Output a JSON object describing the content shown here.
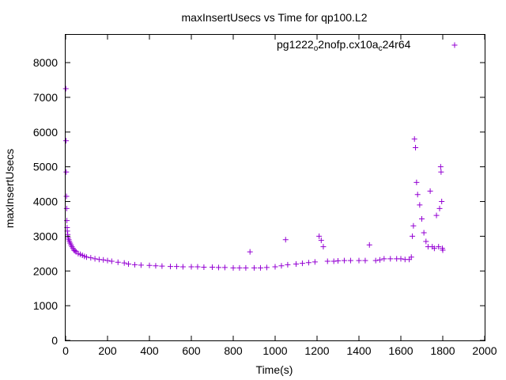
{
  "chart_data": {
    "type": "scatter",
    "title": "maxInsertUsecs vs Time for qp100.L2",
    "xlabel": "Time(s)",
    "ylabel": "maxInsertUsecs",
    "xlim": [
      0,
      2000
    ],
    "ylim": [
      0,
      8800
    ],
    "x_ticks": [
      "0",
      "200",
      "400",
      "600",
      "800",
      "1000",
      "1200",
      "1400",
      "1600",
      "1800",
      "2000"
    ],
    "y_ticks": [
      "0",
      "1000",
      "2000",
      "3000",
      "4000",
      "5000",
      "6000",
      "7000",
      "8000"
    ],
    "grid": false,
    "legend_position": "top-right",
    "series": [
      {
        "name": "pg1222_o2nofp.cx10a_c24r64",
        "legend_parts": [
          {
            "text": "pg1222",
            "sub": false
          },
          {
            "text": "o",
            "sub": true
          },
          {
            "text": "2nofp.cx10a",
            "sub": false
          },
          {
            "text": "c",
            "sub": true
          },
          {
            "text": "24r64",
            "sub": false
          }
        ],
        "color": "#9400d3",
        "marker": "plus",
        "points": [
          [
            1,
            7250
          ],
          [
            2,
            5750
          ],
          [
            3,
            4850
          ],
          [
            4,
            4150
          ],
          [
            5,
            3800
          ],
          [
            6,
            3450
          ],
          [
            7,
            3250
          ],
          [
            8,
            3150
          ],
          [
            10,
            3050
          ],
          [
            12,
            2950
          ],
          [
            15,
            2900
          ],
          [
            18,
            2850
          ],
          [
            22,
            2800
          ],
          [
            26,
            2750
          ],
          [
            30,
            2700
          ],
          [
            35,
            2650
          ],
          [
            40,
            2600
          ],
          [
            45,
            2580
          ],
          [
            50,
            2550
          ],
          [
            60,
            2500
          ],
          [
            70,
            2480
          ],
          [
            80,
            2450
          ],
          [
            90,
            2420
          ],
          [
            100,
            2400
          ],
          [
            120,
            2380
          ],
          [
            140,
            2350
          ],
          [
            160,
            2330
          ],
          [
            180,
            2320
          ],
          [
            200,
            2300
          ],
          [
            220,
            2280
          ],
          [
            250,
            2250
          ],
          [
            280,
            2230
          ],
          [
            300,
            2200
          ],
          [
            330,
            2180
          ],
          [
            360,
            2170
          ],
          [
            400,
            2160
          ],
          [
            430,
            2150
          ],
          [
            460,
            2140
          ],
          [
            500,
            2130
          ],
          [
            530,
            2130
          ],
          [
            560,
            2120
          ],
          [
            600,
            2120
          ],
          [
            630,
            2120
          ],
          [
            660,
            2110
          ],
          [
            700,
            2110
          ],
          [
            730,
            2100
          ],
          [
            760,
            2100
          ],
          [
            800,
            2090
          ],
          [
            830,
            2090
          ],
          [
            860,
            2090
          ],
          [
            880,
            2550
          ],
          [
            900,
            2090
          ],
          [
            930,
            2090
          ],
          [
            960,
            2100
          ],
          [
            1000,
            2120
          ],
          [
            1030,
            2150
          ],
          [
            1050,
            2900
          ],
          [
            1060,
            2180
          ],
          [
            1100,
            2200
          ],
          [
            1130,
            2220
          ],
          [
            1160,
            2240
          ],
          [
            1190,
            2260
          ],
          [
            1210,
            3000
          ],
          [
            1220,
            2880
          ],
          [
            1230,
            2700
          ],
          [
            1250,
            2280
          ],
          [
            1280,
            2280
          ],
          [
            1300,
            2290
          ],
          [
            1330,
            2300
          ],
          [
            1360,
            2300
          ],
          [
            1400,
            2300
          ],
          [
            1430,
            2300
          ],
          [
            1450,
            2750
          ],
          [
            1480,
            2300
          ],
          [
            1500,
            2320
          ],
          [
            1520,
            2350
          ],
          [
            1550,
            2350
          ],
          [
            1580,
            2350
          ],
          [
            1600,
            2350
          ],
          [
            1620,
            2330
          ],
          [
            1640,
            2330
          ],
          [
            1650,
            2400
          ],
          [
            1655,
            3000
          ],
          [
            1660,
            3300
          ],
          [
            1665,
            5800
          ],
          [
            1670,
            5550
          ],
          [
            1675,
            4550
          ],
          [
            1680,
            4200
          ],
          [
            1690,
            3900
          ],
          [
            1700,
            3500
          ],
          [
            1710,
            3100
          ],
          [
            1720,
            2850
          ],
          [
            1730,
            2700
          ],
          [
            1740,
            4300
          ],
          [
            1750,
            2700
          ],
          [
            1760,
            2650
          ],
          [
            1770,
            3600
          ],
          [
            1780,
            2700
          ],
          [
            1785,
            3800
          ],
          [
            1790,
            5000
          ],
          [
            1792,
            4850
          ],
          [
            1795,
            4000
          ],
          [
            1798,
            2650
          ],
          [
            1800,
            2600
          ]
        ]
      }
    ]
  }
}
